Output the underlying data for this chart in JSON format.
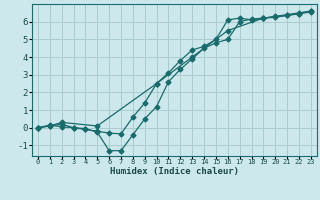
{
  "xlabel": "Humidex (Indice chaleur)",
  "bg_color": "#cce8ed",
  "grid_color": "#aacccc",
  "line_color": "#1a6b6b",
  "xlim": [
    -0.5,
    23.5
  ],
  "ylim": [
    -1.6,
    7.0
  ],
  "xticks": [
    0,
    1,
    2,
    3,
    4,
    5,
    6,
    7,
    8,
    9,
    10,
    11,
    12,
    13,
    14,
    15,
    16,
    17,
    18,
    19,
    20,
    21,
    22,
    23
  ],
  "yticks": [
    -1,
    0,
    1,
    2,
    3,
    4,
    5,
    6
  ],
  "line1_x": [
    0,
    1,
    2,
    3,
    4,
    5,
    6,
    7,
    8,
    9,
    10,
    11,
    12,
    13,
    14,
    15,
    16,
    17,
    18,
    19,
    20,
    21,
    22,
    23
  ],
  "line1_y": [
    0.0,
    0.15,
    0.05,
    0.0,
    -0.1,
    -0.2,
    -0.3,
    -0.35,
    0.6,
    1.4,
    2.5,
    3.1,
    3.8,
    4.4,
    4.6,
    5.0,
    6.1,
    6.2,
    6.1,
    6.2,
    6.3,
    6.4,
    6.5,
    6.6
  ],
  "line2_x": [
    0,
    1,
    2,
    3,
    4,
    5,
    6,
    7,
    8,
    9,
    10,
    11,
    12,
    13,
    14,
    15,
    16,
    17,
    18,
    19,
    20,
    21,
    22,
    23
  ],
  "line2_y": [
    0.0,
    0.1,
    0.2,
    0.0,
    -0.05,
    -0.25,
    -1.3,
    -1.3,
    -0.4,
    0.5,
    1.2,
    2.6,
    3.3,
    3.9,
    4.5,
    4.8,
    5.0,
    6.0,
    6.15,
    6.2,
    6.25,
    6.35,
    6.45,
    6.55
  ],
  "line3_x": [
    0,
    1,
    2,
    5,
    10,
    13,
    16,
    19,
    22,
    23
  ],
  "line3_y": [
    0.0,
    0.1,
    0.3,
    0.1,
    2.5,
    4.0,
    5.5,
    6.2,
    6.45,
    6.6
  ]
}
